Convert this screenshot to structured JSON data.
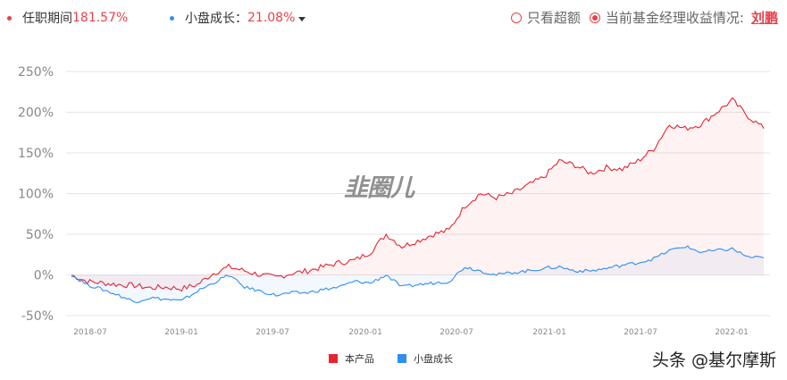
{
  "header": {
    "series1": {
      "label": "任职期间",
      "value": "181.57%",
      "dot_color": "#e8414b"
    },
    "series2": {
      "label": "小盘成长：",
      "value": "21.08%",
      "dot_color": "#3a8ee6"
    },
    "options": [
      {
        "label": "只看超额",
        "selected": false
      },
      {
        "label": "当前基金经理收益情况:",
        "selected": true
      }
    ],
    "manager_link": "刘鹏"
  },
  "watermark": "韭圈儿",
  "credit": "头条 @基尔摩斯",
  "legend": [
    {
      "label": "本产品",
      "color": "#e8242f"
    },
    {
      "label": "小盘成长",
      "color": "#2f8ef0"
    }
  ],
  "chart_data": {
    "type": "line",
    "title": "",
    "xlabel": "",
    "ylabel": "",
    "ylim": [
      -50,
      250
    ],
    "yticks": [
      "250%",
      "200%",
      "150%",
      "100%",
      "50%",
      "0%",
      "-50%"
    ],
    "xticks": [
      "2018-07",
      "2019-01",
      "2019-07",
      "2020-01",
      "2020-07",
      "2021-01",
      "2021-07",
      "2022-01"
    ],
    "grid": true,
    "legend_position": "bottom",
    "x": [
      "2018-06",
      "2018-07",
      "2018-08",
      "2018-09",
      "2018-10",
      "2018-11",
      "2018-12",
      "2019-01",
      "2019-02",
      "2019-03",
      "2019-04",
      "2019-05",
      "2019-06",
      "2019-07",
      "2019-08",
      "2019-09",
      "2019-10",
      "2019-11",
      "2019-12",
      "2020-01",
      "2020-02",
      "2020-03",
      "2020-04",
      "2020-05",
      "2020-06",
      "2020-07",
      "2020-08",
      "2020-09",
      "2020-10",
      "2020-11",
      "2020-12",
      "2021-01",
      "2021-02",
      "2021-03",
      "2021-04",
      "2021-05",
      "2021-06",
      "2021-07",
      "2021-08",
      "2021-09",
      "2021-10",
      "2021-11",
      "2021-12",
      "2022-01",
      "2022-02"
    ],
    "series": [
      {
        "name": "本产品",
        "color": "#e8242f",
        "values": [
          0,
          -8,
          -10,
          -12,
          -13,
          -16,
          -15,
          -17,
          -12,
          2,
          10,
          5,
          0,
          -3,
          2,
          5,
          10,
          15,
          18,
          28,
          50,
          35,
          42,
          50,
          55,
          85,
          100,
          95,
          100,
          110,
          120,
          140,
          135,
          125,
          132,
          130,
          140,
          155,
          185,
          180,
          185,
          200,
          215,
          195,
          180
        ]
      },
      {
        "name": "小盘成长",
        "color": "#2f8ef0",
        "values": [
          0,
          -12,
          -18,
          -25,
          -33,
          -28,
          -30,
          -32,
          -20,
          -10,
          0,
          -15,
          -20,
          -25,
          -22,
          -22,
          -18,
          -15,
          -8,
          -10,
          0,
          -15,
          -12,
          -10,
          -8,
          10,
          5,
          0,
          3,
          5,
          8,
          10,
          5,
          5,
          8,
          12,
          15,
          20,
          30,
          35,
          28,
          30,
          32,
          22,
          21
        ]
      }
    ]
  }
}
